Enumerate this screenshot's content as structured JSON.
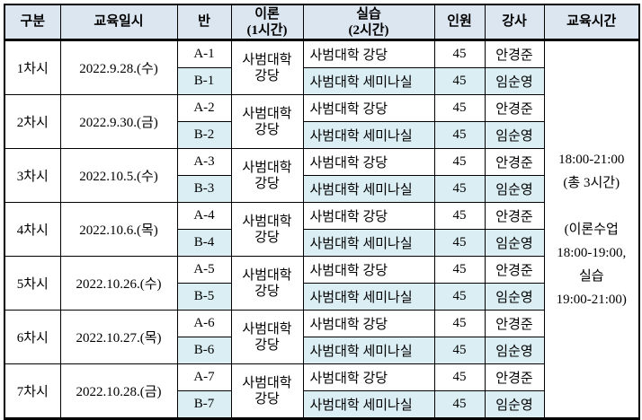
{
  "colors": {
    "header_bg": "#dce6f1",
    "shaded_row_bg": "#daeef3",
    "border": "#000000",
    "text": "#000000"
  },
  "headers": {
    "session": "구분",
    "datetime": "교육일시",
    "class": "반",
    "theory1": "이론",
    "theory2": "(1시간)",
    "practice1": "실습",
    "practice2": "(2시간)",
    "count": "인원",
    "instructor": "강사",
    "time": "교육시간"
  },
  "groups": [
    {
      "session": "1차시",
      "date": "2022.9.28.(수)",
      "theory1": "사범대학",
      "theory2": "강당",
      "rows": [
        {
          "cls": "A-1",
          "practice": "사범대학 강당",
          "count": "45",
          "instructor": "안경준"
        },
        {
          "cls": "B-1",
          "practice": "사범대학 세미나실",
          "count": "45",
          "instructor": "임순영"
        }
      ]
    },
    {
      "session": "2차시",
      "date": "2022.9.30.(금)",
      "theory1": "사범대학",
      "theory2": "강당",
      "rows": [
        {
          "cls": "A-2",
          "practice": "사범대학 강당",
          "count": "45",
          "instructor": "안경준"
        },
        {
          "cls": "B-2",
          "practice": "사범대학 세미나실",
          "count": "45",
          "instructor": "임순영"
        }
      ]
    },
    {
      "session": "3차시",
      "date": "2022.10.5.(수)",
      "theory1": "사범대학",
      "theory2": "강당",
      "rows": [
        {
          "cls": "A-3",
          "practice": "사범대학 강당",
          "count": "45",
          "instructor": "안경준"
        },
        {
          "cls": "B-3",
          "practice": "사범대학 세미나실",
          "count": "45",
          "instructor": "임순영"
        }
      ]
    },
    {
      "session": "4차시",
      "date": "2022.10.6.(목)",
      "theory1": "사범대학",
      "theory2": "강당",
      "rows": [
        {
          "cls": "A-4",
          "practice": "사범대학 강당",
          "count": "45",
          "instructor": "안경준"
        },
        {
          "cls": "B-4",
          "practice": "사범대학 세미나실",
          "count": "45",
          "instructor": "임순영"
        }
      ]
    },
    {
      "session": "5차시",
      "date": "2022.10.26.(수)",
      "theory1": "사범대학",
      "theory2": "강당",
      "rows": [
        {
          "cls": "A-5",
          "practice": "사범대학 강당",
          "count": "45",
          "instructor": "안경준"
        },
        {
          "cls": "B-5",
          "practice": "사범대학 세미나실",
          "count": "45",
          "instructor": "임순영"
        }
      ]
    },
    {
      "session": "6차시",
      "date": "2022.10.27.(목)",
      "theory1": "사범대학",
      "theory2": "강당",
      "rows": [
        {
          "cls": "A-6",
          "practice": "사범대학 강당",
          "count": "45",
          "instructor": "안경준"
        },
        {
          "cls": "B-6",
          "practice": "사범대학 세미나실",
          "count": "45",
          "instructor": "임순영"
        }
      ]
    },
    {
      "session": "7차시",
      "date": "2022.10.28.(금)",
      "theory1": "사범대학",
      "theory2": "강당",
      "rows": [
        {
          "cls": "A-7",
          "practice": "사범대학 강당",
          "count": "45",
          "instructor": "안경준"
        },
        {
          "cls": "B-7",
          "practice": "사범대학 세미나실",
          "count": "45",
          "instructor": "임순영"
        }
      ]
    }
  ],
  "time_note": [
    "18:00-21:00",
    "(총 3시간)",
    "",
    "(이론수업",
    "18:00-19:00,",
    "실습",
    "19:00-21:00)"
  ]
}
